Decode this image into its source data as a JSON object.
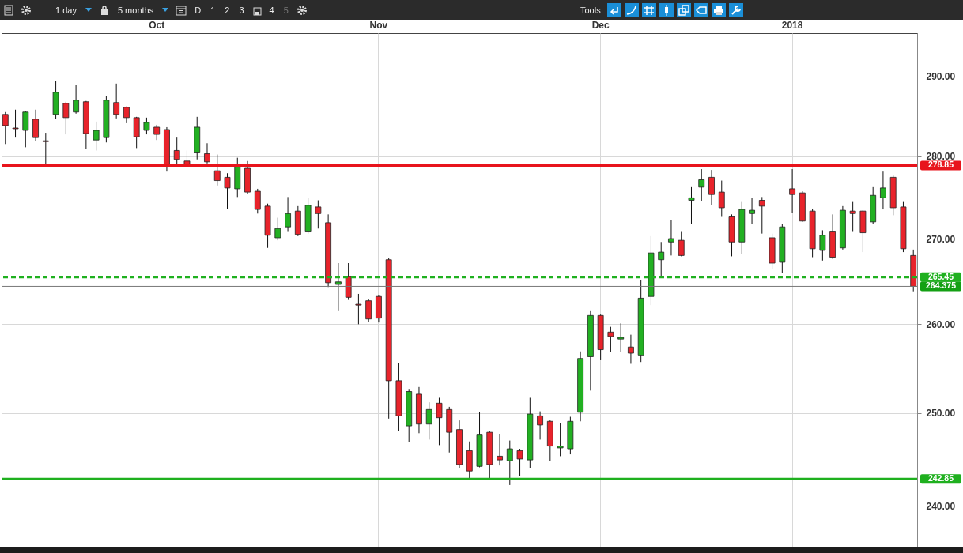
{
  "chart_data": {
    "type": "candlestick",
    "log": true,
    "grid": true,
    "categories": [
      null,
      null,
      null,
      null,
      null,
      null,
      null,
      null,
      null,
      null,
      null,
      null,
      null,
      null,
      null,
      "Oct",
      null,
      null,
      null,
      null,
      null,
      null,
      null,
      null,
      null,
      null,
      null,
      null,
      null,
      null,
      null,
      null,
      null,
      null,
      null,
      null,
      null,
      "Nov",
      null,
      null,
      null,
      null,
      null,
      null,
      null,
      null,
      null,
      null,
      null,
      null,
      null,
      null,
      null,
      null,
      null,
      null,
      null,
      null,
      null,
      "Dec",
      null,
      null,
      null,
      null,
      null,
      null,
      null,
      null,
      null,
      null,
      null,
      null,
      null,
      null,
      null,
      null,
      null,
      null,
      "2018",
      null,
      null,
      null,
      null,
      null,
      null,
      null,
      null,
      null,
      null,
      null,
      null
    ],
    "ohlc": [
      [
        285.2,
        285.5,
        281.5,
        283.8
      ],
      [
        283.5,
        285.8,
        282.3,
        283.4
      ],
      [
        283.2,
        285.6,
        281.1,
        285.5
      ],
      [
        284.6,
        285.8,
        281.9,
        282.3
      ],
      [
        281.9,
        282.9,
        278.85,
        281.8
      ],
      [
        285.2,
        289.4,
        284.6,
        288.0
      ],
      [
        286.6,
        286.8,
        282.7,
        284.8
      ],
      [
        285.5,
        288.9,
        285.3,
        287.0
      ],
      [
        286.8,
        286.9,
        280.9,
        282.8
      ],
      [
        282.0,
        284.3,
        280.7,
        283.2
      ],
      [
        282.3,
        287.5,
        281.7,
        287.0
      ],
      [
        286.7,
        289.1,
        284.7,
        285.2
      ],
      [
        286.1,
        286.2,
        284.1,
        284.8
      ],
      [
        284.8,
        284.9,
        281.0,
        282.4
      ],
      [
        283.2,
        284.8,
        282.7,
        284.2
      ],
      [
        283.6,
        283.9,
        282.0,
        282.7
      ],
      [
        283.3,
        283.6,
        278.1,
        279.0
      ],
      [
        280.7,
        282.3,
        279.0,
        279.6
      ],
      [
        279.4,
        280.7,
        278.9,
        279.0
      ],
      [
        280.4,
        284.9,
        279.6,
        283.6
      ],
      [
        280.3,
        281.6,
        279.1,
        279.3
      ],
      [
        278.2,
        280.2,
        276.4,
        277.0
      ],
      [
        277.4,
        277.9,
        273.6,
        276.1
      ],
      [
        276.0,
        279.8,
        275.0,
        279.0
      ],
      [
        278.5,
        279.4,
        275.4,
        275.6
      ],
      [
        275.7,
        276.0,
        273.0,
        273.5
      ],
      [
        273.9,
        274.2,
        268.9,
        270.4
      ],
      [
        270.1,
        272.5,
        269.8,
        271.2
      ],
      [
        271.4,
        275.0,
        270.8,
        273.0
      ],
      [
        273.3,
        273.9,
        270.3,
        270.5
      ],
      [
        270.8,
        274.9,
        270.6,
        274.0
      ],
      [
        273.8,
        274.6,
        271.2,
        273.0
      ],
      [
        271.9,
        272.9,
        264.3,
        264.8
      ],
      [
        264.6,
        267.1,
        261.5,
        264.9
      ],
      [
        265.5,
        267.1,
        262.8,
        263.1
      ],
      [
        262.3,
        263.5,
        260.0,
        262.2
      ],
      [
        262.7,
        262.9,
        260.3,
        260.6
      ],
      [
        263.2,
        263.3,
        260.2,
        260.7
      ],
      [
        267.5,
        267.7,
        249.4,
        253.6
      ],
      [
        253.6,
        255.6,
        248.0,
        249.7
      ],
      [
        248.6,
        252.6,
        246.8,
        252.4
      ],
      [
        252.1,
        252.9,
        247.8,
        248.8
      ],
      [
        248.8,
        251.2,
        247.1,
        250.4
      ],
      [
        251.1,
        251.7,
        246.5,
        249.5
      ],
      [
        250.4,
        250.7,
        245.7,
        247.9
      ],
      [
        248.2,
        249.2,
        244.0,
        244.4
      ],
      [
        245.9,
        246.9,
        242.85,
        243.7
      ],
      [
        244.2,
        250.1,
        244.1,
        247.6
      ],
      [
        247.9,
        248.0,
        242.9,
        244.4
      ],
      [
        245.3,
        247.7,
        244.3,
        244.9
      ],
      [
        244.8,
        247.0,
        242.2,
        246.1
      ],
      [
        245.9,
        246.1,
        243.2,
        245.0
      ],
      [
        244.9,
        251.7,
        244.0,
        249.9
      ],
      [
        249.7,
        250.2,
        247.1,
        248.7
      ],
      [
        249.1,
        249.2,
        244.8,
        246.4
      ],
      [
        246.2,
        248.9,
        245.3,
        246.4
      ],
      [
        246.1,
        249.6,
        245.5,
        249.1
      ],
      [
        250.1,
        256.9,
        249.1,
        256.1
      ],
      [
        256.3,
        261.5,
        252.5,
        261.0
      ],
      [
        261.0,
        261.1,
        255.9,
        257.1
      ],
      [
        259.1,
        259.7,
        256.8,
        258.6
      ],
      [
        258.3,
        260.1,
        256.8,
        258.5
      ],
      [
        257.4,
        258.8,
        255.5,
        256.7
      ],
      [
        256.4,
        265.1,
        255.7,
        263.0
      ],
      [
        263.2,
        270.3,
        262.2,
        268.3
      ],
      [
        267.5,
        269.6,
        265.6,
        268.4
      ],
      [
        269.6,
        272.2,
        268.0,
        270.0
      ],
      [
        269.8,
        270.8,
        267.9,
        268.0
      ],
      [
        274.6,
        276.2,
        271.7,
        274.9
      ],
      [
        276.2,
        278.4,
        274.5,
        277.1
      ],
      [
        277.4,
        278.3,
        274.0,
        275.3
      ],
      [
        275.6,
        277.0,
        272.6,
        273.7
      ],
      [
        272.6,
        272.9,
        267.9,
        269.6
      ],
      [
        269.6,
        274.4,
        268.2,
        273.5
      ],
      [
        273.0,
        274.9,
        271.7,
        273.4
      ],
      [
        274.6,
        275.0,
        270.6,
        273.9
      ],
      [
        270.1,
        270.6,
        266.4,
        267.1
      ],
      [
        267.2,
        271.7,
        265.9,
        271.4
      ],
      [
        276.0,
        278.4,
        273.1,
        275.3
      ],
      [
        275.5,
        275.7,
        272.0,
        272.1
      ],
      [
        273.3,
        273.6,
        267.8,
        268.8
      ],
      [
        268.6,
        271.0,
        267.4,
        270.4
      ],
      [
        270.8,
        272.9,
        267.6,
        267.8
      ],
      [
        268.9,
        273.9,
        268.7,
        273.4
      ],
      [
        273.3,
        274.4,
        270.8,
        273.0
      ],
      [
        273.3,
        273.4,
        268.4,
        270.7
      ],
      [
        272.0,
        276.2,
        271.7,
        275.2
      ],
      [
        274.9,
        278.1,
        273.5,
        276.1
      ],
      [
        277.4,
        277.6,
        272.8,
        273.7
      ],
      [
        273.8,
        274.4,
        268.4,
        268.8
      ],
      [
        268.0,
        268.7,
        263.8,
        264.375
      ]
    ],
    "ylim": [
      235.7,
      295.6
    ],
    "yticks": [
      {
        "value": 240,
        "label": "240.00"
      },
      {
        "value": 250,
        "label": "250.00"
      },
      {
        "value": 260,
        "label": "260.00"
      },
      {
        "value": 270,
        "label": "270.00"
      },
      {
        "value": 280,
        "label": "280.00"
      },
      {
        "value": 290,
        "label": "290.00"
      }
    ],
    "ref_lines": [
      {
        "axis": "y",
        "value": 278.85,
        "label": "278.85",
        "color": "#e8141c"
      },
      {
        "axis": "y",
        "value": 265.45,
        "label": "265.45",
        "color": "#1fb01f",
        "line_style": "dashed"
      },
      {
        "axis": "y",
        "value": 264.375,
        "label": "264.375"
      },
      {
        "axis": "y",
        "value": 242.85,
        "label": "242.85",
        "color": "#1fb01f"
      }
    ],
    "annotations": [
      "1 day",
      "5 months",
      "D",
      "1",
      "2",
      "3",
      "4",
      "5",
      "Tools"
    ]
  }
}
